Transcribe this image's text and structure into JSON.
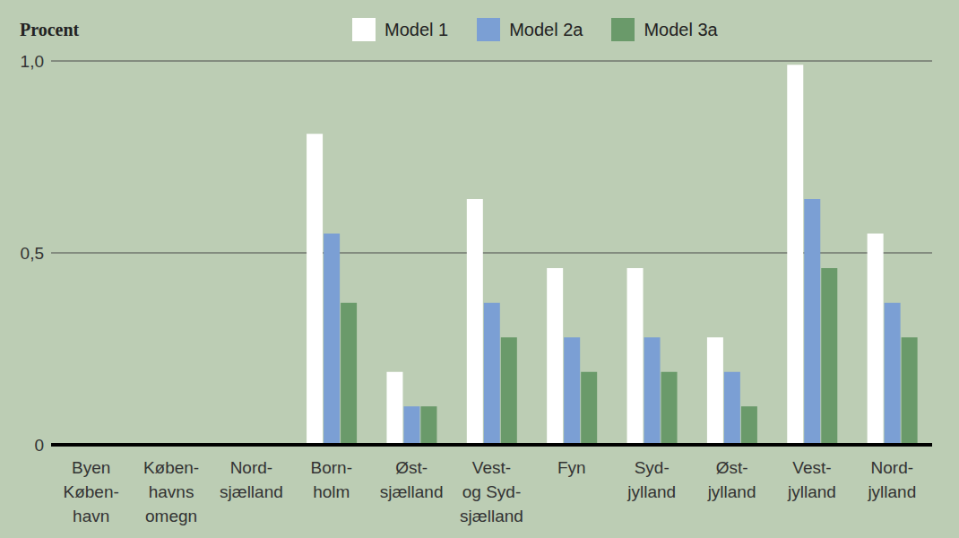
{
  "chart_data": {
    "type": "bar",
    "ylabel": "Procent",
    "categories": [
      "Byen\nKøben-\nhavn",
      "Køben-\nhavns\nomegn",
      "Nord-\nsjælland",
      "Born-\nholm",
      "Øst-\nsjælland",
      "Vest-\nog Syd-\nsjælland",
      "Fyn",
      "Syd-\njylland",
      "Øst-\njylland",
      "Vest-\njylland",
      "Nord-\njylland"
    ],
    "series": [
      {
        "name": "Model 1",
        "color": "#ffffff",
        "values": [
          0,
          0,
          0,
          0.81,
          0.19,
          0.64,
          0.46,
          0.46,
          0.28,
          0.99,
          0.55
        ]
      },
      {
        "name": "Model 2a",
        "color": "#7b9fd4",
        "values": [
          0,
          0,
          0,
          0.55,
          0.1,
          0.37,
          0.28,
          0.28,
          0.19,
          0.64,
          0.37
        ]
      },
      {
        "name": "Model 3a",
        "color": "#6a9a6a",
        "values": [
          0,
          0,
          0,
          0.37,
          0.1,
          0.28,
          0.19,
          0.19,
          0.1,
          0.46,
          0.28
        ]
      }
    ],
    "ylim": [
      0,
      1
    ],
    "yticks": [
      0,
      {
        "value": 0.5,
        "label": "0,5"
      },
      {
        "value": 1,
        "label": "1,0"
      }
    ],
    "grid": true,
    "legend": "top"
  }
}
